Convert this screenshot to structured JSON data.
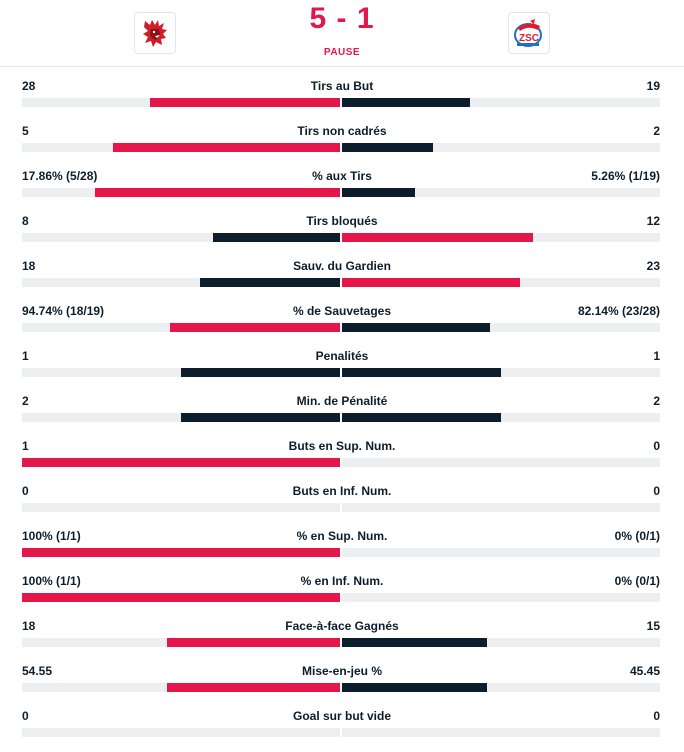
{
  "match": {
    "home_logo": "lion-head-logo",
    "away_logo": "zsc-lions-logo",
    "score": "5 - 1",
    "status": "PAUSE"
  },
  "colors": {
    "accent": "#e5174a",
    "dark": "#0c1e2b",
    "track": "#eceef0"
  },
  "stats": [
    {
      "label": "Tirs au But",
      "home": "28",
      "away": "19",
      "home_share": 0.596,
      "away_share": 0.404,
      "leader": "home"
    },
    {
      "label": "Tirs non cadrés",
      "home": "5",
      "away": "2",
      "home_share": 0.714,
      "away_share": 0.286,
      "leader": "home"
    },
    {
      "label": "% aux Tirs",
      "home": "17.86% (5/28)",
      "away": "5.26% (1/19)",
      "home_share": 0.772,
      "away_share": 0.228,
      "leader": "home"
    },
    {
      "label": "Tirs bloqués",
      "home": "8",
      "away": "12",
      "home_share": 0.4,
      "away_share": 0.6,
      "leader": "away"
    },
    {
      "label": "Sauv. du Gardien",
      "home": "18",
      "away": "23",
      "home_share": 0.439,
      "away_share": 0.561,
      "leader": "away"
    },
    {
      "label": "% de Sauvetages",
      "home": "94.74% (18/19)",
      "away": "82.14% (23/28)",
      "home_share": 0.536,
      "away_share": 0.464,
      "leader": "home"
    },
    {
      "label": "Penalités",
      "home": "1",
      "away": "1",
      "home_share": 0.5,
      "away_share": 0.5,
      "leader": "none"
    },
    {
      "label": "Min. de Pénalité",
      "home": "2",
      "away": "2",
      "home_share": 0.5,
      "away_share": 0.5,
      "leader": "none"
    },
    {
      "label": "Buts en Sup. Num.",
      "home": "1",
      "away": "0",
      "home_share": 1.0,
      "away_share": 0.0,
      "leader": "home"
    },
    {
      "label": "Buts en Inf. Num.",
      "home": "0",
      "away": "0",
      "home_share": 0.0,
      "away_share": 0.0,
      "leader": "none"
    },
    {
      "label": "% en Sup. Num.",
      "home": "100% (1/1)",
      "away": "0% (0/1)",
      "home_share": 1.0,
      "away_share": 0.0,
      "leader": "home"
    },
    {
      "label": "% en Inf. Num.",
      "home": "100% (1/1)",
      "away": "0% (0/1)",
      "home_share": 1.0,
      "away_share": 0.0,
      "leader": "home"
    },
    {
      "label": "Face-à-face Gagnés",
      "home": "18",
      "away": "15",
      "home_share": 0.545,
      "away_share": 0.455,
      "leader": "home"
    },
    {
      "label": "Mise-en-jeu %",
      "home": "54.55",
      "away": "45.45",
      "home_share": 0.545,
      "away_share": 0.455,
      "leader": "home"
    },
    {
      "label": "Goal sur but vide",
      "home": "0",
      "away": "0",
      "home_share": 0.0,
      "away_share": 0.0,
      "leader": "none"
    }
  ]
}
